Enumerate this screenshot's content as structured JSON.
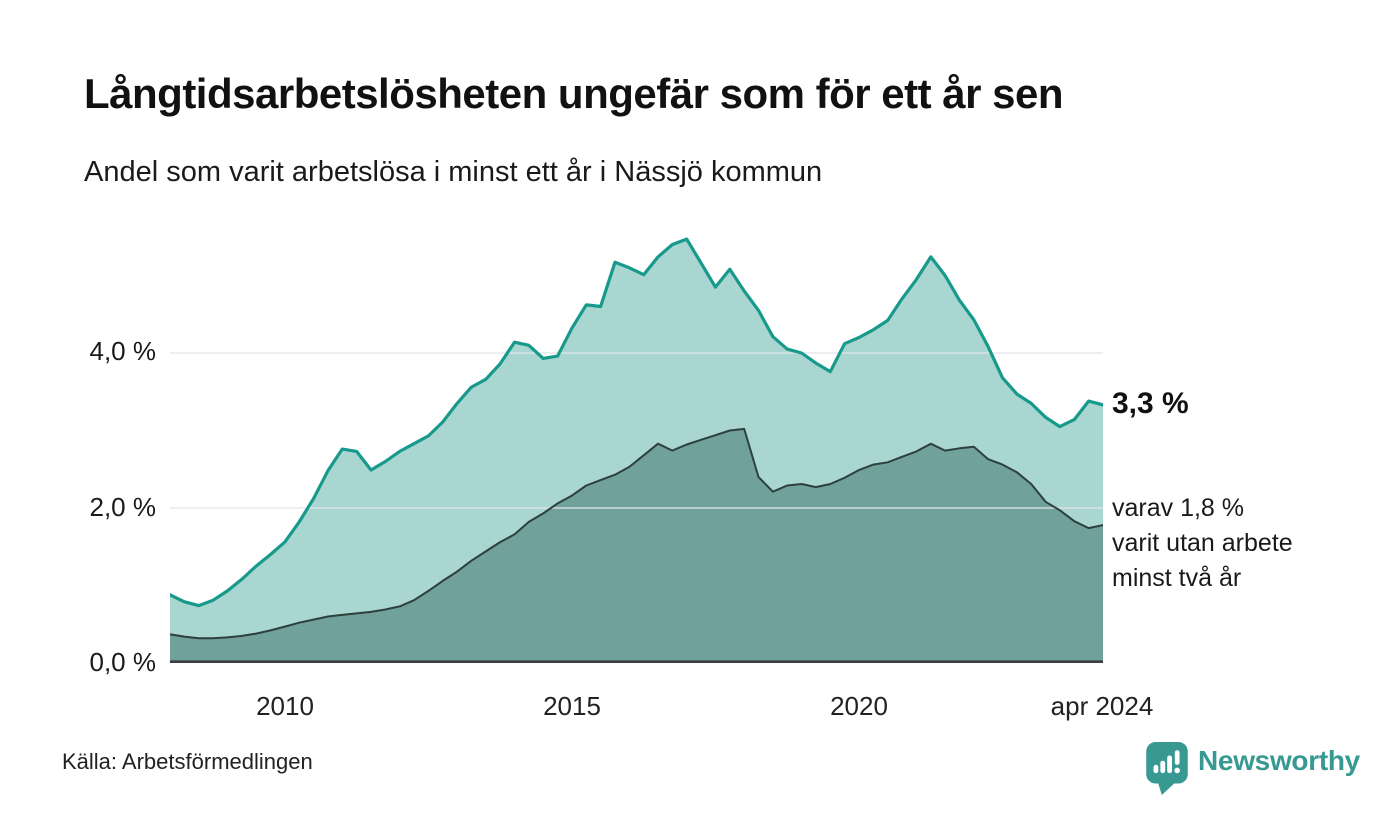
{
  "header": {
    "title": "Långtidsarbetslösheten ungefär som för ett år sen",
    "subtitle": "Andel som varit arbetslösa i minst ett år i Nässjö kommun"
  },
  "chart_data": {
    "type": "area",
    "title": "Långtidsarbetslösheten ungefär som för ett år sen",
    "subtitle": "Andel som varit arbetslösa i minst ett år i Nässjö kommun",
    "x_start_year": 2008.0,
    "x_step_years": 0.25,
    "x_end_year": 2024.25,
    "x_end_label": "apr 2024",
    "ylim": [
      0,
      5.59
    ],
    "grid": "horizontal",
    "legend_position": "none",
    "yticks": [
      {
        "value": 0,
        "label": "0,0 %"
      },
      {
        "value": 2,
        "label": "2,0 %"
      },
      {
        "value": 4,
        "label": "4,0 %"
      }
    ],
    "xticks": [
      {
        "value": 2010,
        "label": "2010"
      },
      {
        "value": 2015,
        "label": "2015"
      },
      {
        "value": 2020,
        "label": "2020"
      },
      {
        "value": 2024.25,
        "label": "apr 2024"
      }
    ],
    "series": [
      {
        "name": "Andel som varit arbetslösa i minst ett år",
        "line_color": "#179a8b",
        "fill_color": "#a9d6d0",
        "line_width": 3.2,
        "end_value_label": "3,3 %",
        "values": [
          0.88,
          0.79,
          0.74,
          0.81,
          0.93,
          1.08,
          1.25,
          1.4,
          1.56,
          1.82,
          2.12,
          2.48,
          2.76,
          2.73,
          2.49,
          2.6,
          2.73,
          2.83,
          2.93,
          3.11,
          3.35,
          3.56,
          3.66,
          3.86,
          4.14,
          4.1,
          3.93,
          3.96,
          4.32,
          4.62,
          4.6,
          5.17,
          5.1,
          5.01,
          5.24,
          5.4,
          5.47,
          5.16,
          4.85,
          5.08,
          4.8,
          4.55,
          4.21,
          4.05,
          4.0,
          3.87,
          3.76,
          4.12,
          4.2,
          4.3,
          4.42,
          4.7,
          4.95,
          5.24,
          5.0,
          4.68,
          4.43,
          4.08,
          3.68,
          3.47,
          3.35,
          3.17,
          3.05,
          3.14,
          3.38,
          3.33
        ]
      },
      {
        "name": "varav utan arbete minst två år",
        "line_color": "#2d403d",
        "fill_color": "#70a19b",
        "line_width": 2,
        "end_value_label": "varav 1,8 %",
        "values": [
          0.37,
          0.34,
          0.32,
          0.32,
          0.33,
          0.35,
          0.38,
          0.42,
          0.47,
          0.52,
          0.56,
          0.6,
          0.62,
          0.64,
          0.66,
          0.69,
          0.73,
          0.81,
          0.93,
          1.06,
          1.18,
          1.32,
          1.44,
          1.56,
          1.66,
          1.82,
          1.93,
          2.06,
          2.16,
          2.29,
          2.36,
          2.43,
          2.53,
          2.68,
          2.83,
          2.74,
          2.82,
          2.88,
          2.94,
          3.0,
          3.02,
          2.4,
          2.21,
          2.29,
          2.31,
          2.27,
          2.31,
          2.39,
          2.49,
          2.56,
          2.59,
          2.66,
          2.73,
          2.83,
          2.74,
          2.77,
          2.79,
          2.63,
          2.56,
          2.46,
          2.31,
          2.08,
          1.97,
          1.83,
          1.74,
          1.78
        ]
      }
    ],
    "annotations": {
      "end_value": "3,3 %",
      "secondary_lines": [
        "varav 1,8 %",
        "varit utan arbete",
        "minst två år"
      ]
    },
    "colors": {
      "grid": "#e2e5e7",
      "baseline": "#3b3f3e",
      "accent_teal": "#179a8b",
      "brand_teal": "#389992"
    }
  },
  "footer": {
    "source": "Källa: Arbetsförmedlingen",
    "brand": "Newsworthy"
  }
}
